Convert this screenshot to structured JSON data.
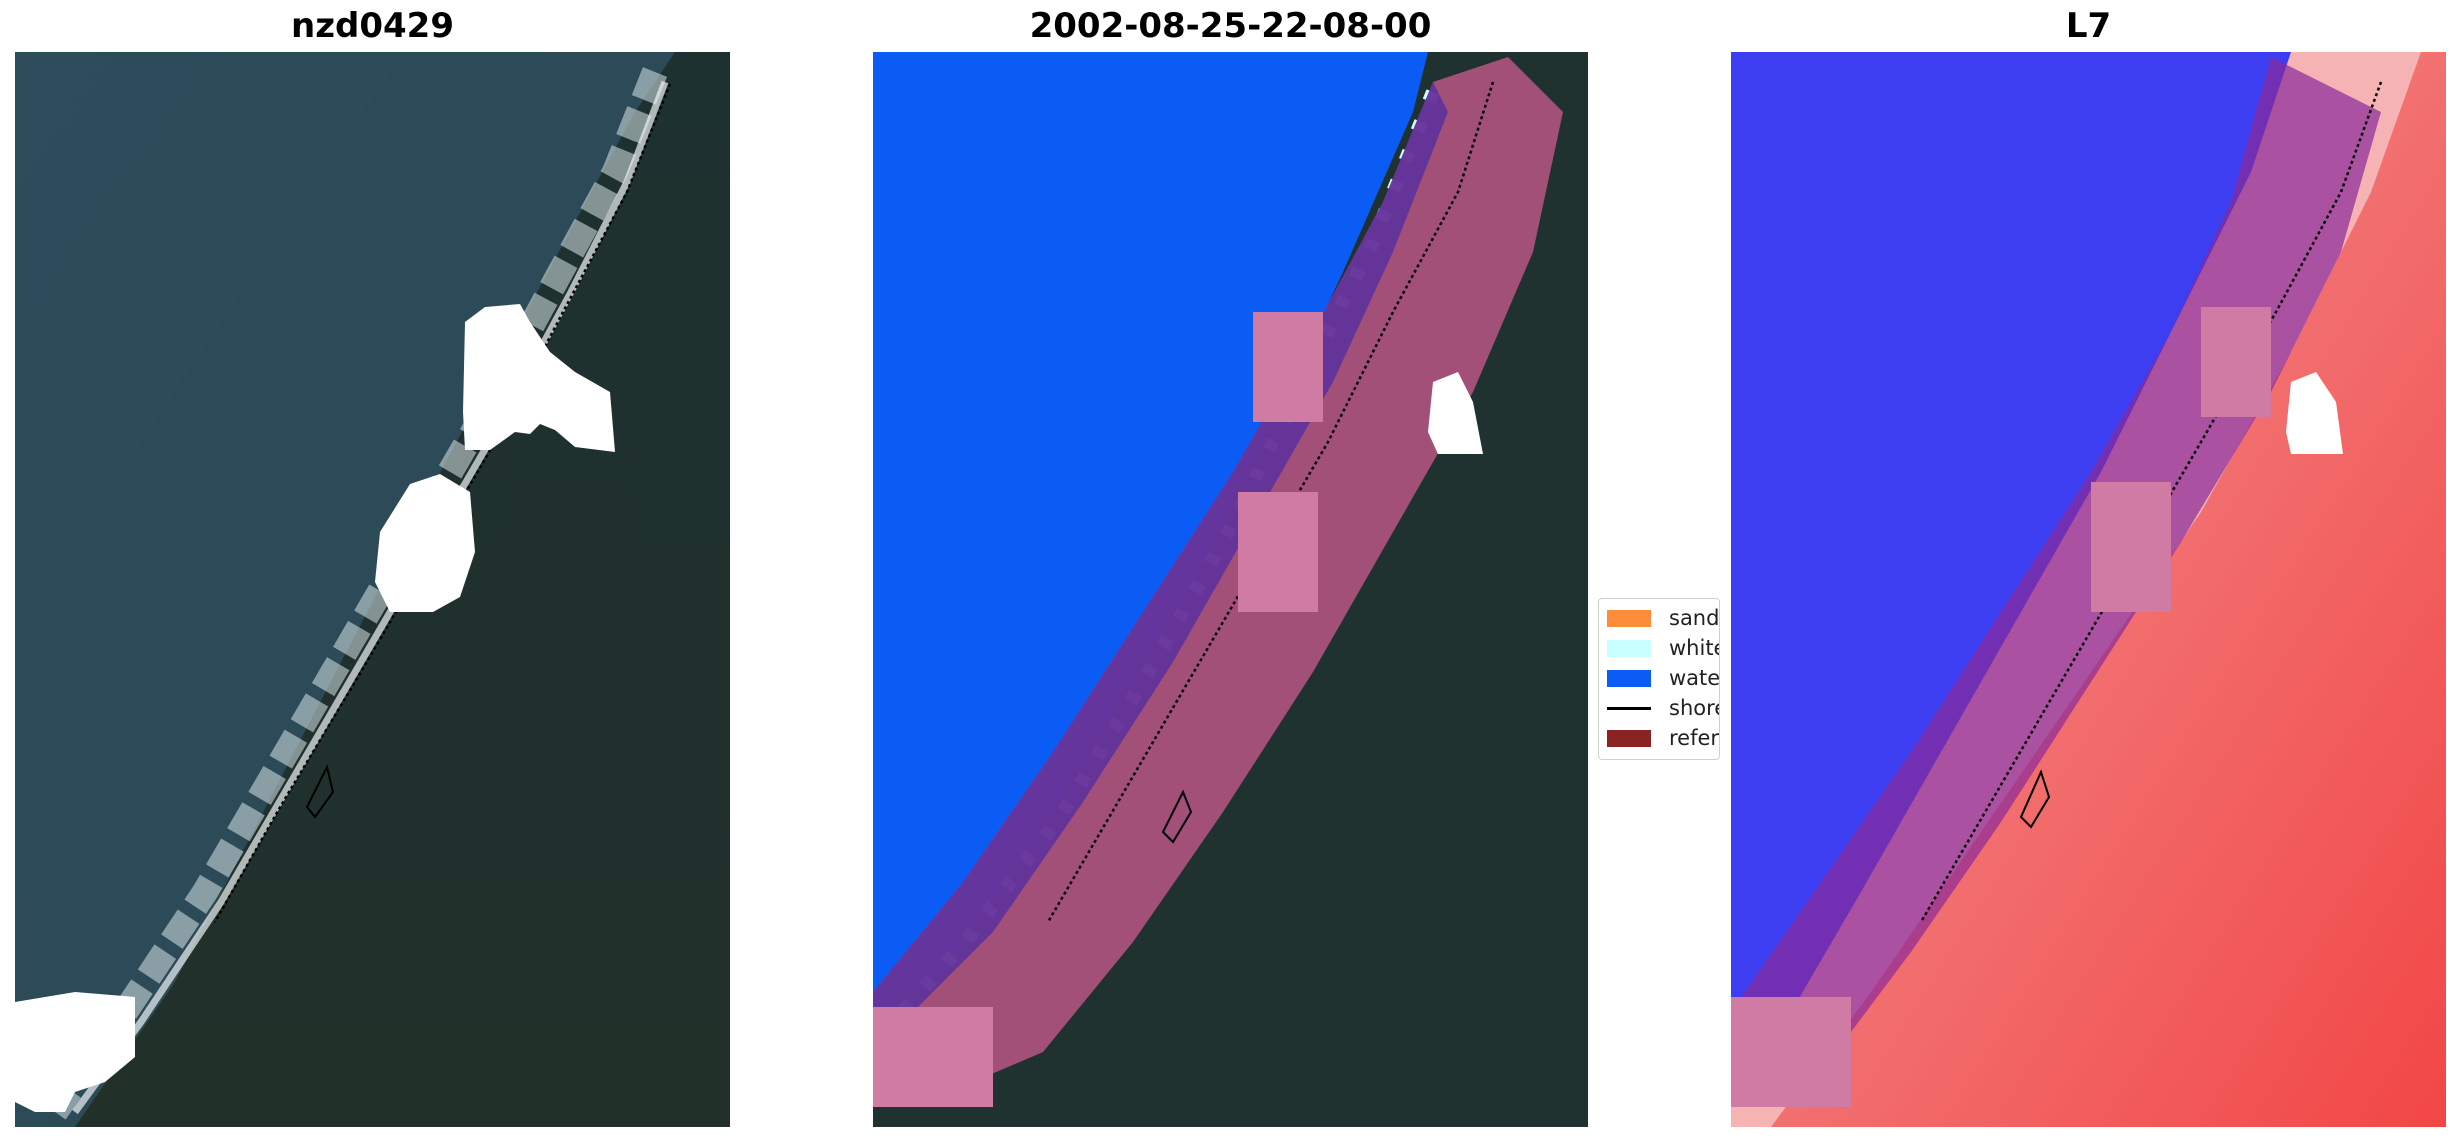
{
  "panels": [
    {
      "title": "nzd0429"
    },
    {
      "title": "2002-08-25-22-08-00"
    },
    {
      "title": "L7"
    }
  ],
  "legend": {
    "items": [
      {
        "label": "sand",
        "color": "#ff8c3a",
        "kind": "patch"
      },
      {
        "label": "whitewater",
        "color": "#c9ffff",
        "kind": "patch"
      },
      {
        "label": "water",
        "color": "#0a5cf5",
        "kind": "patch"
      },
      {
        "label": "shoreline",
        "color": "#000000",
        "kind": "line"
      },
      {
        "label": "reference shoreline buffer",
        "color": "#8b2323",
        "kind": "patch"
      }
    ]
  },
  "colors": {
    "ocean": "#2c4a58",
    "forest": "#1b2d2a",
    "surf": "#d8e2e6",
    "water_class": "#0a5cf5",
    "buffer_overlay": "#c4578c",
    "index_blue": "#3a3af0",
    "index_red": "#f03c3c",
    "cloud_mask": "#ffffff"
  }
}
